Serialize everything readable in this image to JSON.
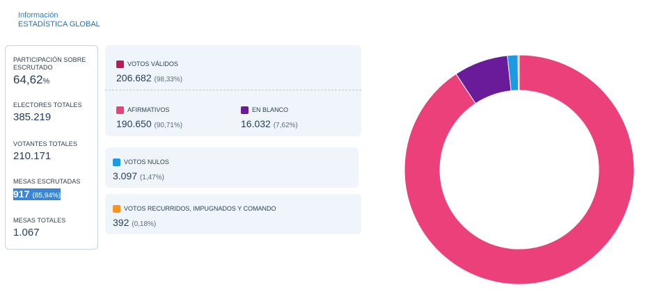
{
  "header": {
    "subtitle": "Información",
    "title": "ESTADÍSTICA GLOBAL"
  },
  "stats": {
    "participacion": {
      "label": "PARTICIPACIÓN SOBRE ESCRUTADO",
      "value": "64,62",
      "unit": "%"
    },
    "electores": {
      "label": "ELECTORES TOTALES",
      "value": "385.219"
    },
    "votantes": {
      "label": "VOTANTES TOTALES",
      "value": "210.171"
    },
    "mesas_escrutadas": {
      "label": "MESAS ESCRUTADAS",
      "value": "917",
      "pct": "(85,94%)"
    },
    "mesas_totales": {
      "label": "MESAS TOTALES",
      "value": "1.067"
    }
  },
  "votos": {
    "validos": {
      "label": "VOTOS VÁLIDOS",
      "value": "206.682",
      "pct": "(98,33%)",
      "color": "#c2185b"
    },
    "afirmativos": {
      "label": "AFIRMATIVOS",
      "value": "190.650",
      "pct": "(90,71%)",
      "color": "#ec407a"
    },
    "en_blanco": {
      "label": "EN BLANCO",
      "value": "16.032",
      "pct": "(7,62%)",
      "color": "#6a1b9a"
    },
    "nulos": {
      "label": "VOTOS NULOS",
      "value": "3.097",
      "pct": "(1,47%)",
      "color": "#1e9be0"
    },
    "recurridos": {
      "label": "VOTOS RECURRIDOS, IMPUGNADOS Y COMANDO",
      "value": "392",
      "pct": "(0,18%)",
      "color": "#f7941d"
    }
  },
  "chart_data": {
    "type": "pie",
    "donut": true,
    "categories": [
      "AFIRMATIVOS",
      "EN BLANCO",
      "VOTOS NULOS",
      "VOTOS RECURRIDOS, IMPUGNADOS Y COMANDO"
    ],
    "values": [
      190650,
      16032,
      3097,
      392
    ],
    "colors": [
      "#ec407a",
      "#6a1b9a",
      "#1e9be0",
      "#f7941d"
    ]
  }
}
